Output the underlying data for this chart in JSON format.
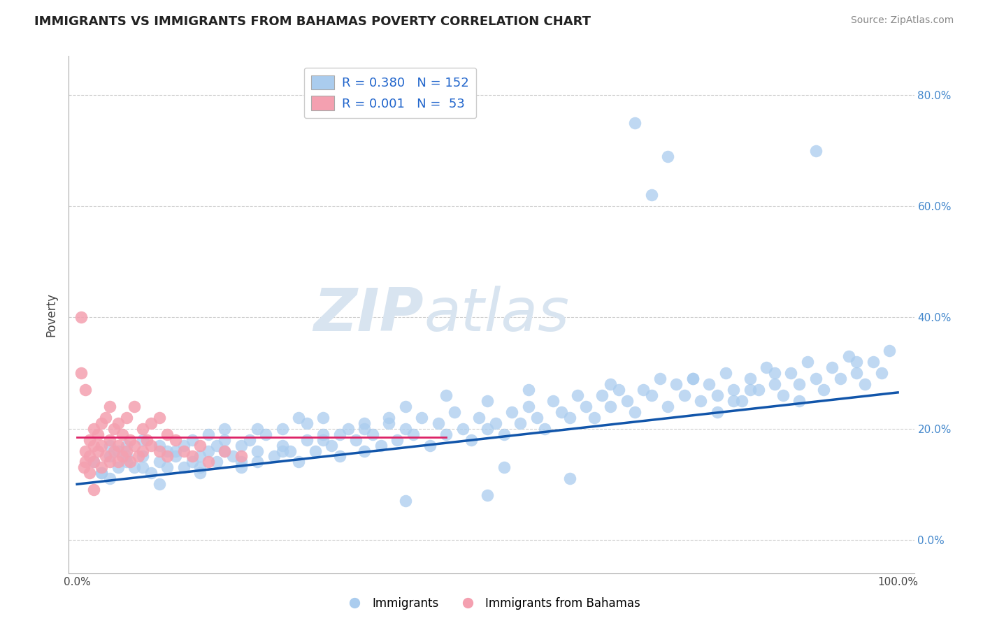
{
  "title": "IMMIGRANTS VS IMMIGRANTS FROM BAHAMAS POVERTY CORRELATION CHART",
  "source": "Source: ZipAtlas.com",
  "ylabel": "Poverty",
  "xlabel": "",
  "xlim": [
    -0.01,
    1.02
  ],
  "ylim": [
    -0.06,
    0.87
  ],
  "yticks": [
    0.0,
    0.2,
    0.4,
    0.6,
    0.8
  ],
  "ytick_labels": [
    "",
    "",
    "",
    "",
    ""
  ],
  "ytick_labels_right": [
    "0.0%",
    "20.0%",
    "40.0%",
    "60.0%",
    "80.0%"
  ],
  "xticks": [
    0.0,
    0.5,
    1.0
  ],
  "xtick_labels": [
    "0.0%",
    "",
    "100.0%"
  ],
  "blue_color": "#aaccee",
  "pink_color": "#f4a0b0",
  "blue_line_color": "#1155aa",
  "pink_line_color": "#dd2266",
  "blue_R": 0.38,
  "blue_N": 152,
  "pink_R": 0.001,
  "pink_N": 53,
  "watermark_zip": "ZIP",
  "watermark_atlas": "atlas",
  "blue_line_x0": 0.0,
  "blue_line_y0": 0.1,
  "blue_line_x1": 1.0,
  "blue_line_y1": 0.265,
  "pink_line_x0": 0.0,
  "pink_line_y0": 0.185,
  "pink_line_x1": 0.45,
  "pink_line_y1": 0.185,
  "blue_scatter_x": [
    0.02,
    0.03,
    0.04,
    0.04,
    0.05,
    0.05,
    0.06,
    0.06,
    0.07,
    0.08,
    0.08,
    0.09,
    0.1,
    0.1,
    0.11,
    0.11,
    0.12,
    0.13,
    0.13,
    0.14,
    0.14,
    0.15,
    0.15,
    0.16,
    0.16,
    0.17,
    0.17,
    0.18,
    0.18,
    0.19,
    0.2,
    0.2,
    0.21,
    0.22,
    0.22,
    0.23,
    0.24,
    0.25,
    0.25,
    0.26,
    0.27,
    0.28,
    0.28,
    0.29,
    0.3,
    0.3,
    0.31,
    0.32,
    0.33,
    0.34,
    0.35,
    0.35,
    0.36,
    0.37,
    0.38,
    0.39,
    0.4,
    0.4,
    0.41,
    0.42,
    0.43,
    0.44,
    0.45,
    0.46,
    0.47,
    0.48,
    0.49,
    0.5,
    0.5,
    0.51,
    0.52,
    0.53,
    0.54,
    0.55,
    0.56,
    0.57,
    0.58,
    0.59,
    0.6,
    0.61,
    0.62,
    0.63,
    0.64,
    0.65,
    0.66,
    0.67,
    0.68,
    0.69,
    0.7,
    0.71,
    0.72,
    0.73,
    0.74,
    0.75,
    0.76,
    0.77,
    0.78,
    0.79,
    0.8,
    0.81,
    0.82,
    0.83,
    0.84,
    0.85,
    0.86,
    0.87,
    0.88,
    0.89,
    0.9,
    0.91,
    0.92,
    0.93,
    0.94,
    0.95,
    0.96,
    0.97,
    0.98,
    0.99,
    0.5,
    0.6,
    0.52,
    0.4,
    0.45,
    0.55,
    0.65,
    0.75,
    0.8,
    0.85,
    0.82,
    0.78,
    0.35,
    0.3,
    0.25,
    0.2,
    0.15,
    0.1,
    0.08,
    0.06,
    0.04,
    0.03,
    0.7,
    0.72,
    0.68,
    0.9,
    0.88,
    0.95,
    0.12,
    0.18,
    0.22,
    0.27,
    0.32,
    0.38
  ],
  "blue_scatter_y": [
    0.14,
    0.12,
    0.15,
    0.11,
    0.13,
    0.16,
    0.14,
    0.17,
    0.13,
    0.15,
    0.18,
    0.12,
    0.14,
    0.17,
    0.13,
    0.16,
    0.15,
    0.13,
    0.17,
    0.14,
    0.18,
    0.15,
    0.13,
    0.16,
    0.19,
    0.14,
    0.17,
    0.16,
    0.2,
    0.15,
    0.17,
    0.13,
    0.18,
    0.16,
    0.14,
    0.19,
    0.15,
    0.17,
    0.2,
    0.16,
    0.14,
    0.18,
    0.21,
    0.16,
    0.19,
    0.22,
    0.17,
    0.15,
    0.2,
    0.18,
    0.16,
    0.21,
    0.19,
    0.17,
    0.22,
    0.18,
    0.2,
    0.24,
    0.19,
    0.22,
    0.17,
    0.21,
    0.19,
    0.23,
    0.2,
    0.18,
    0.22,
    0.2,
    0.25,
    0.21,
    0.19,
    0.23,
    0.21,
    0.24,
    0.22,
    0.2,
    0.25,
    0.23,
    0.22,
    0.26,
    0.24,
    0.22,
    0.26,
    0.24,
    0.27,
    0.25,
    0.23,
    0.27,
    0.26,
    0.29,
    0.24,
    0.28,
    0.26,
    0.29,
    0.25,
    0.28,
    0.26,
    0.3,
    0.27,
    0.25,
    0.29,
    0.27,
    0.31,
    0.28,
    0.26,
    0.3,
    0.28,
    0.32,
    0.29,
    0.27,
    0.31,
    0.29,
    0.33,
    0.3,
    0.28,
    0.32,
    0.3,
    0.34,
    0.08,
    0.11,
    0.13,
    0.07,
    0.26,
    0.27,
    0.28,
    0.29,
    0.25,
    0.3,
    0.27,
    0.23,
    0.2,
    0.18,
    0.16,
    0.14,
    0.12,
    0.1,
    0.13,
    0.15,
    0.17,
    0.12,
    0.62,
    0.69,
    0.75,
    0.7,
    0.25,
    0.32,
    0.16,
    0.18,
    0.2,
    0.22,
    0.19,
    0.21
  ],
  "pink_scatter_x": [
    0.005,
    0.008,
    0.01,
    0.01,
    0.015,
    0.015,
    0.015,
    0.02,
    0.02,
    0.02,
    0.025,
    0.025,
    0.03,
    0.03,
    0.03,
    0.035,
    0.035,
    0.04,
    0.04,
    0.04,
    0.045,
    0.045,
    0.05,
    0.05,
    0.05,
    0.055,
    0.055,
    0.06,
    0.06,
    0.065,
    0.065,
    0.07,
    0.07,
    0.075,
    0.08,
    0.08,
    0.085,
    0.09,
    0.09,
    0.1,
    0.1,
    0.11,
    0.11,
    0.12,
    0.13,
    0.14,
    0.15,
    0.16,
    0.18,
    0.2,
    0.005,
    0.01,
    0.02
  ],
  "pink_scatter_y": [
    0.4,
    0.13,
    0.14,
    0.16,
    0.12,
    0.15,
    0.18,
    0.14,
    0.17,
    0.2,
    0.16,
    0.19,
    0.13,
    0.17,
    0.21,
    0.15,
    0.22,
    0.14,
    0.18,
    0.24,
    0.16,
    0.2,
    0.14,
    0.17,
    0.21,
    0.15,
    0.19,
    0.16,
    0.22,
    0.14,
    0.18,
    0.17,
    0.24,
    0.15,
    0.16,
    0.2,
    0.18,
    0.17,
    0.21,
    0.16,
    0.22,
    0.15,
    0.19,
    0.18,
    0.16,
    0.15,
    0.17,
    0.14,
    0.16,
    0.15,
    0.3,
    0.27,
    0.09
  ]
}
